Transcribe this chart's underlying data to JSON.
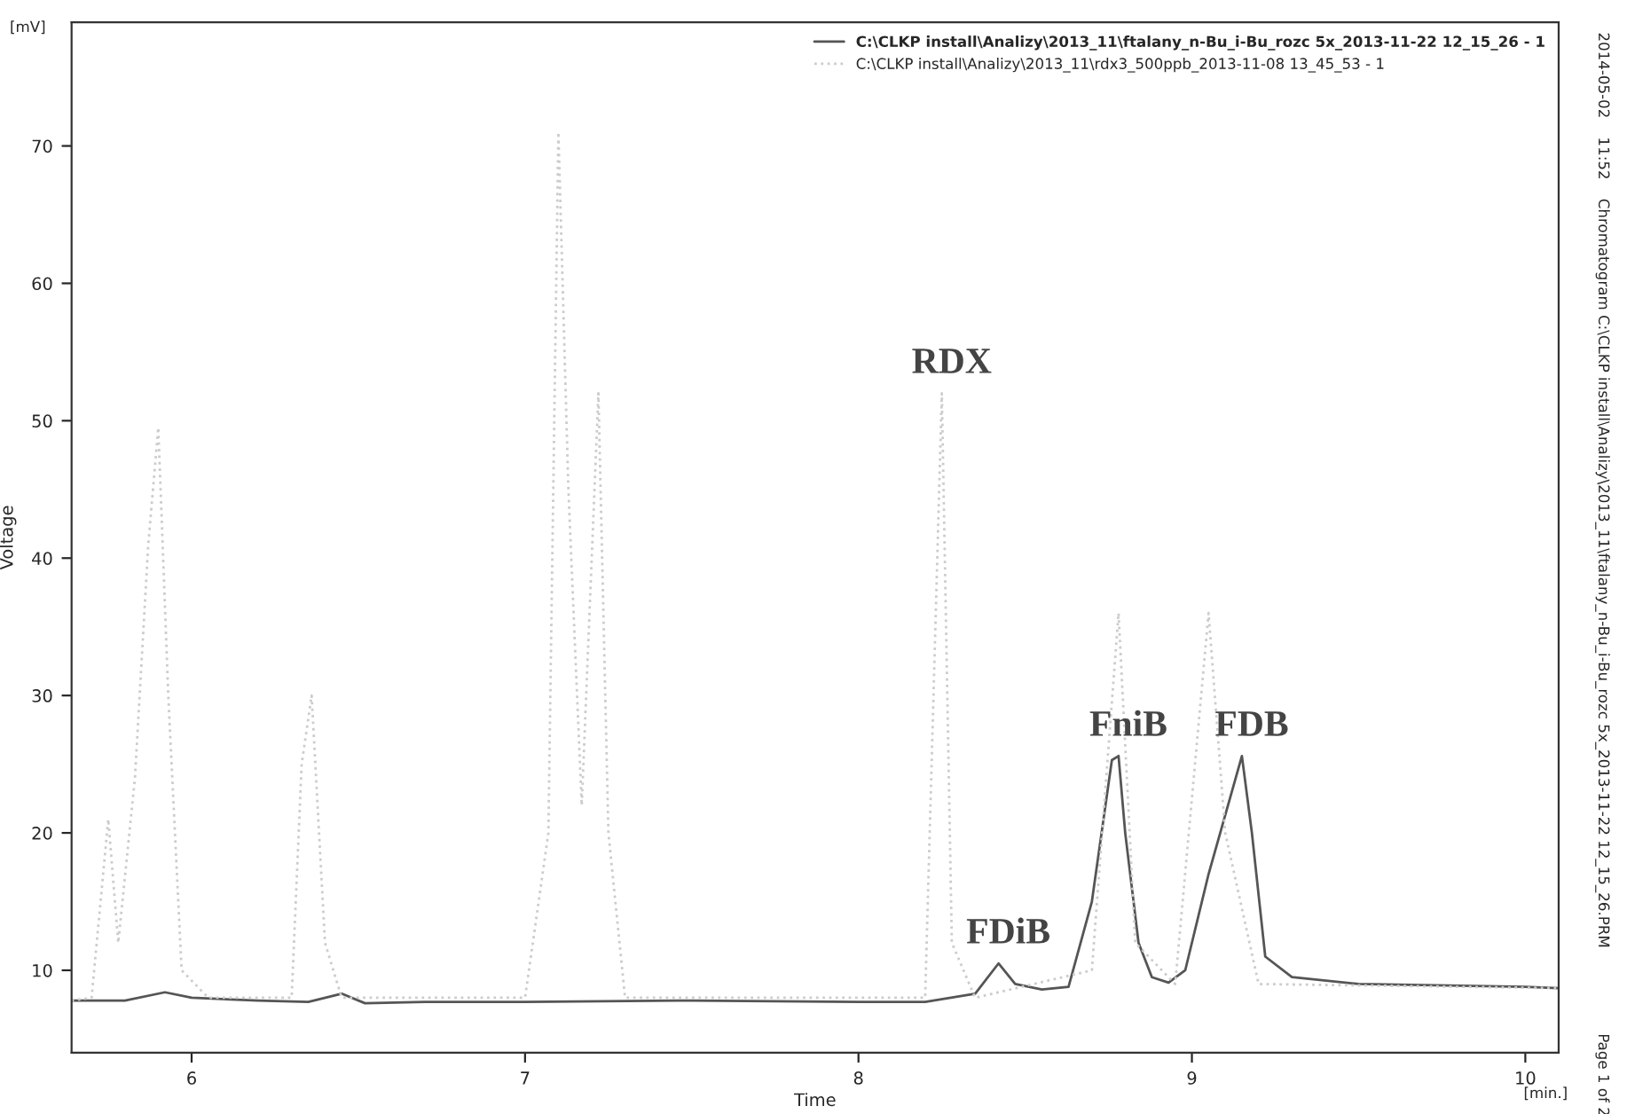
{
  "chart_data": {
    "type": "line",
    "xlabel": "Time",
    "ylabel": "Voltage",
    "xlim": [
      5.64,
      10.1
    ],
    "ylim": [
      4,
      79
    ],
    "xticks": [
      6,
      7,
      8,
      9,
      10
    ],
    "yticks": [
      10,
      20,
      30,
      40,
      50,
      60,
      70
    ],
    "grid": false,
    "legend": "top right",
    "marker": "none",
    "series": [
      {
        "name": "C:\\CLKP install\\Analizy\\2013_11\\ftalany_n-Bu_i-Bu_rozc 5x_2013-11-22 12_15_26 - 1",
        "color": "#555555",
        "line_style": "solid",
        "x": [
          5.64,
          5.8,
          5.92,
          6.0,
          6.2,
          6.35,
          6.45,
          6.52,
          6.7,
          7.0,
          7.5,
          8.0,
          8.2,
          8.35,
          8.42,
          8.47,
          8.55,
          8.63,
          8.7,
          8.76,
          8.78,
          8.8,
          8.84,
          8.88,
          8.93,
          8.98,
          9.05,
          9.15,
          9.18,
          9.22,
          9.3,
          9.5,
          10.0,
          10.1
        ],
        "values": [
          7.8,
          7.8,
          8.4,
          8.0,
          7.8,
          7.7,
          8.3,
          7.6,
          7.7,
          7.7,
          7.8,
          7.7,
          7.7,
          8.3,
          10.5,
          9.0,
          8.6,
          8.8,
          15,
          25.3,
          25.6,
          20,
          12,
          9.5,
          9.1,
          10,
          17,
          25.6,
          20,
          11,
          9.5,
          9.0,
          8.8,
          8.7
        ]
      },
      {
        "name": "C:\\CLKP install\\Analizy\\2013_11\\rdx3_500ppb_2013-11-08 13_45_53 - 1",
        "color": "#cccccc",
        "line_style": "dotted",
        "x": [
          5.64,
          5.7,
          5.75,
          5.78,
          5.83,
          5.87,
          5.9,
          5.93,
          5.97,
          6.05,
          6.3,
          6.33,
          6.36,
          6.4,
          6.45,
          7.0,
          7.07,
          7.1,
          7.13,
          7.17,
          7.22,
          7.25,
          7.3,
          8.2,
          8.25,
          8.28,
          8.35,
          8.7,
          8.78,
          8.83,
          8.95,
          9.05,
          9.1,
          9.2,
          10.1
        ],
        "values": [
          7.8,
          8,
          21,
          12,
          24,
          41,
          49.5,
          30,
          10,
          8,
          8,
          25,
          30,
          12,
          8,
          8,
          20,
          71,
          45,
          22,
          52,
          20,
          8,
          8,
          52,
          12,
          8,
          10,
          36,
          12,
          9,
          36,
          20,
          9,
          8.7
        ]
      }
    ],
    "annotations": [
      {
        "text": "RDX",
        "x": 8.25,
        "y": 52
      },
      {
        "text": "FDiB",
        "x": 8.42,
        "y": 10.5
      },
      {
        "text": "FniB",
        "x": 8.78,
        "y": 25.6
      },
      {
        "text": "FDB",
        "x": 9.15,
        "y": 25.6
      },
      "[mV]",
      "[min.]",
      "2014-05-02    11:52    Chromatogram C:\\CLKP install\\Analizy\\2013_11\\ftalany_n-Bu_i-Bu_rozc 5x_2013-11-22 12_15_26.PRM",
      "Page 1 of 2"
    ]
  }
}
